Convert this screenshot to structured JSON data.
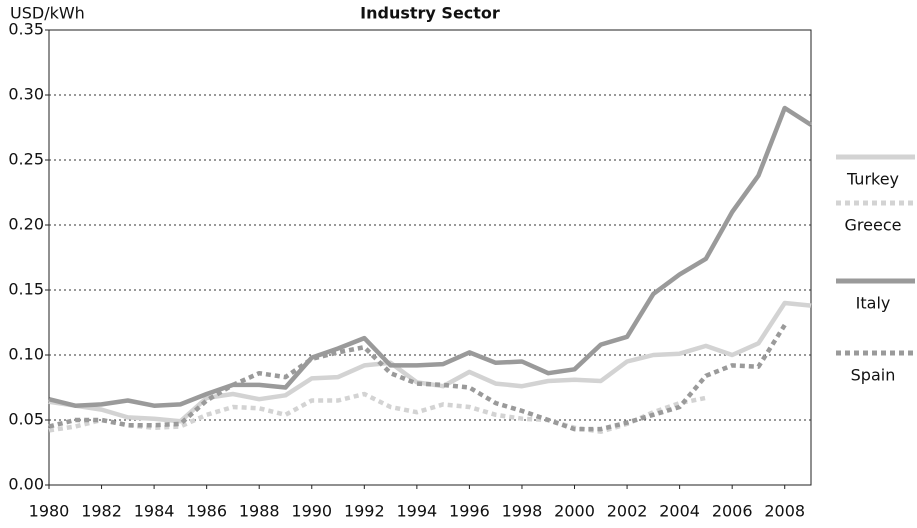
{
  "chart_data": {
    "type": "line",
    "title": "Industry Sector",
    "y_label": "USD/kWh",
    "x": [
      1980,
      1981,
      1982,
      1983,
      1984,
      1985,
      1986,
      1987,
      1988,
      1989,
      1990,
      1991,
      1992,
      1993,
      1994,
      1995,
      1996,
      1997,
      1998,
      1999,
      2000,
      2001,
      2002,
      2003,
      2004,
      2005,
      2006,
      2007,
      2008,
      2009
    ],
    "xlim": [
      1980,
      2009
    ],
    "xticks": [
      1980,
      1982,
      1984,
      1986,
      1988,
      1990,
      1992,
      1994,
      1996,
      1998,
      2000,
      2002,
      2004,
      2006,
      2008
    ],
    "ylim": [
      0,
      0.35
    ],
    "yticks": [
      {
        "value": 0,
        "label": "0.00"
      },
      0.05,
      {
        "value": 0.1,
        "label": "0.10"
      },
      0.15,
      {
        "value": 0.2,
        "label": "0.20"
      },
      0.25,
      {
        "value": 0.3,
        "label": "0.30"
      },
      0.35
    ],
    "grid": true,
    "legend": "right",
    "series": [
      {
        "name": "Turkey",
        "color": "#d3d3d3",
        "style": "solid",
        "values": [
          0.064,
          0.061,
          0.058,
          0.052,
          0.051,
          0.049,
          0.067,
          0.07,
          0.066,
          0.069,
          0.082,
          0.083,
          0.092,
          0.094,
          0.079,
          0.076,
          0.087,
          0.078,
          0.076,
          0.08,
          0.081,
          0.08,
          0.095,
          0.1,
          0.101,
          0.107,
          0.1,
          0.109,
          0.14,
          0.138
        ]
      },
      {
        "name": "Greece",
        "color": "#d3d3d3",
        "style": "dashed",
        "values": [
          0.042,
          0.045,
          0.05,
          0.046,
          0.044,
          0.045,
          0.054,
          0.06,
          0.059,
          0.054,
          0.065,
          0.065,
          0.07,
          0.06,
          0.056,
          0.062,
          0.06,
          0.054,
          0.051,
          0.05,
          0.044,
          0.041,
          0.047,
          0.056,
          0.063,
          0.067,
          null,
          null,
          null,
          null
        ]
      },
      {
        "name": "Italy",
        "color": "#9a9a9a",
        "style": "solid",
        "values": [
          0.066,
          0.061,
          0.062,
          0.065,
          0.061,
          0.062,
          0.07,
          0.077,
          0.077,
          0.075,
          0.098,
          0.105,
          0.113,
          0.092,
          0.092,
          0.093,
          0.102,
          0.094,
          0.095,
          0.086,
          0.089,
          0.108,
          0.114,
          0.147,
          0.162,
          0.174,
          0.21,
          0.238,
          0.29,
          0.277
        ]
      },
      {
        "name": "Spain",
        "color": "#9a9a9a",
        "style": "dashed",
        "values": [
          0.045,
          0.05,
          0.05,
          0.046,
          0.046,
          0.047,
          0.065,
          0.077,
          0.086,
          0.083,
          0.097,
          0.102,
          0.106,
          0.086,
          0.078,
          0.077,
          0.075,
          0.063,
          0.057,
          0.05,
          0.043,
          0.043,
          0.048,
          0.054,
          0.06,
          0.084,
          0.092,
          0.091,
          0.123,
          null
        ]
      }
    ]
  }
}
